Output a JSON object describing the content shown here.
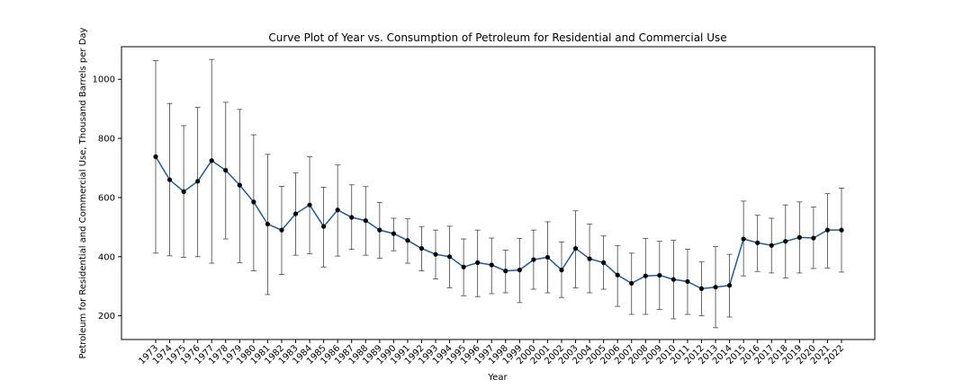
{
  "chart_data": {
    "type": "line",
    "title": "Curve Plot of Year vs. Consumption of Petroleum for Residential and Commercial Use",
    "xlabel": "Year",
    "ylabel": "Petroleum for Residential and Commercial Use, Thousand Barrels per Day",
    "ylim": [
      120,
      1110
    ],
    "yticks": [
      200,
      400,
      600,
      800,
      1000
    ],
    "grid": false,
    "legend": "none",
    "line_color": "#1f5a96",
    "marker_color": "#000000",
    "errorbar_color": "#444444",
    "x": [
      "1973",
      "1974",
      "1975",
      "1976",
      "1977",
      "1978",
      "1979",
      "1980",
      "1981",
      "1982",
      "1983",
      "1984",
      "1985",
      "1986",
      "1987",
      "1988",
      "1989",
      "1990",
      "1991",
      "1992",
      "1993",
      "1994",
      "1995",
      "1996",
      "1997",
      "1998",
      "1999",
      "2000",
      "2001",
      "2002",
      "2003",
      "2004",
      "2005",
      "2006",
      "2007",
      "2008",
      "2009",
      "2010",
      "2011",
      "2012",
      "2013",
      "2014",
      "2015",
      "2016",
      "2017",
      "2018",
      "2019",
      "2020",
      "2021",
      "2022"
    ],
    "series": [
      {
        "values": [
          738,
          660,
          620,
          655,
          725,
          692,
          642,
          585,
          510,
          490,
          545,
          575,
          502,
          558,
          533,
          522,
          490,
          478,
          455,
          428,
          408,
          400,
          365,
          380,
          372,
          352,
          355,
          390,
          398,
          355,
          428,
          393,
          380,
          338,
          310,
          335,
          337,
          323,
          316,
          292,
          297,
          303,
          460,
          447,
          438,
          452,
          465,
          463,
          490,
          490
        ],
        "error_lower": [
          412,
          403,
          398,
          400,
          378,
          460,
          380,
          352,
          272,
          340,
          405,
          410,
          365,
          402,
          425,
          405,
          395,
          420,
          378,
          352,
          325,
          295,
          268,
          265,
          275,
          278,
          245,
          290,
          278,
          262,
          295,
          278,
          290,
          232,
          205,
          205,
          222,
          190,
          205,
          200,
          160,
          196,
          335,
          350,
          345,
          328,
          345,
          360,
          362,
          348
        ],
        "error_upper": [
          1063,
          918,
          843,
          905,
          1067,
          922,
          898,
          812,
          746,
          638,
          683,
          738,
          635,
          710,
          643,
          637,
          583,
          530,
          528,
          502,
          490,
          503,
          460,
          490,
          463,
          422,
          462,
          490,
          518,
          450,
          555,
          510,
          470,
          438,
          412,
          462,
          452,
          455,
          425,
          382,
          434,
          408,
          588,
          540,
          530,
          575,
          585,
          568,
          613,
          632
        ]
      }
    ]
  }
}
